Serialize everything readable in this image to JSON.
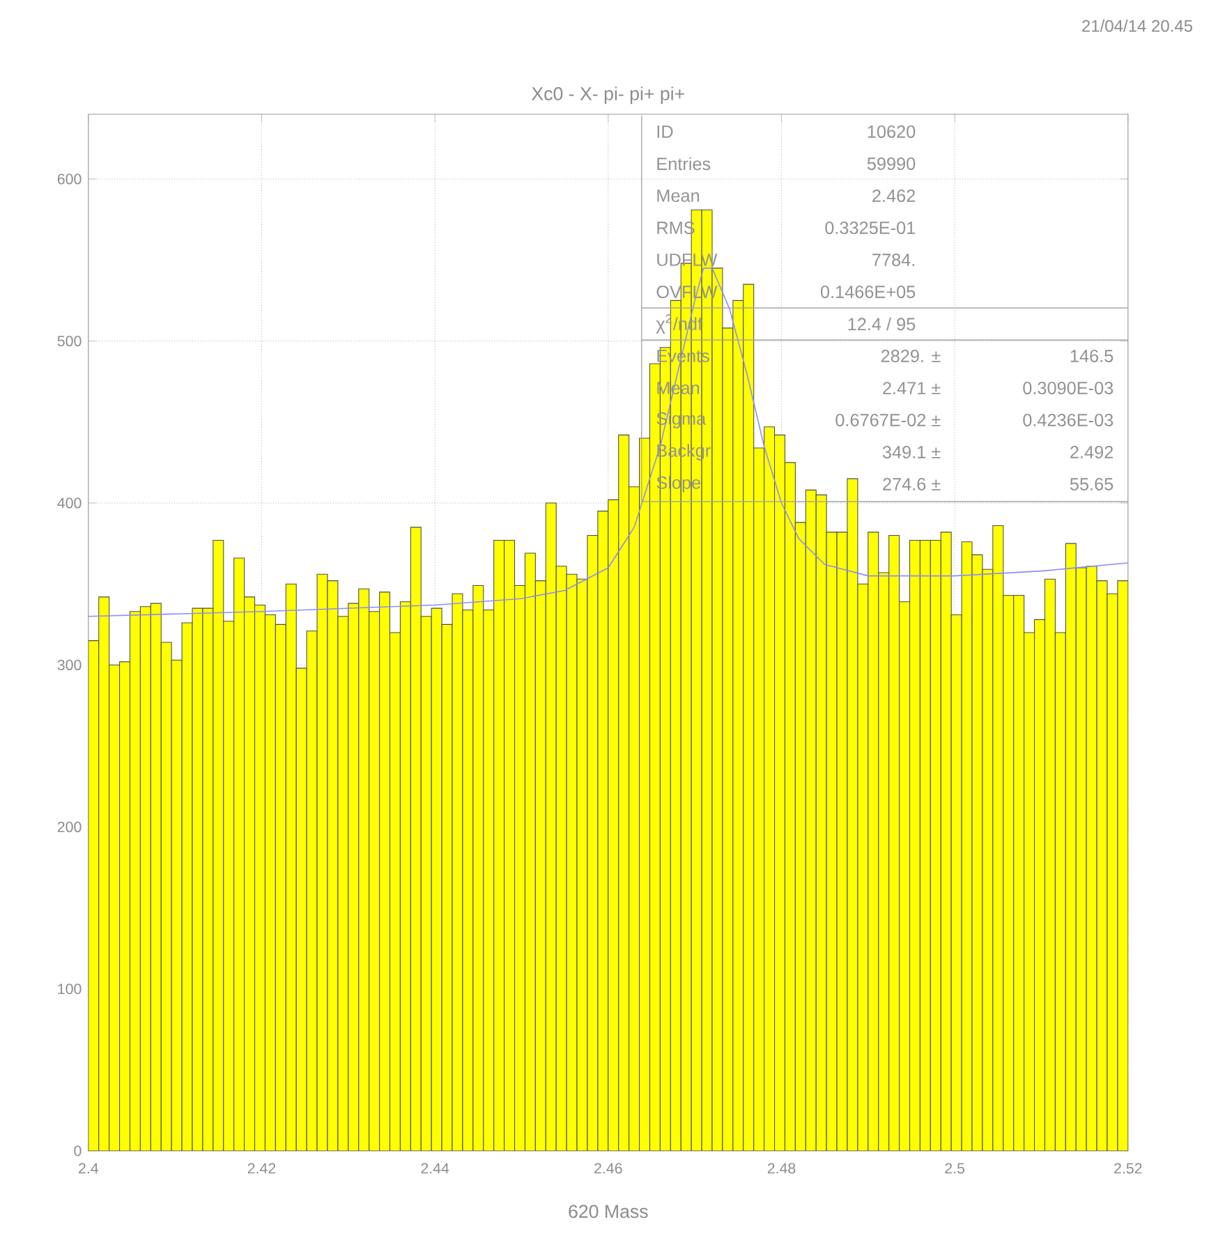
{
  "chart_data": {
    "type": "histogram",
    "title": "Xc0 - X- pi- pi+ pi+",
    "xlabel": "620 Mass",
    "annotations": [
      "21/04/14  20.45",
      "ID",
      "10620",
      "Entries",
      "59990",
      "Mean",
      "2.462",
      "RMS",
      "0.3325E-01",
      "UDFLW",
      "7784.",
      "OVFLW",
      "0.1466E+05",
      "χ$^{2}$/ndf",
      "12.4   /   95",
      "Events",
      "2829. ±",
      "146.5",
      "Mean",
      "2.471 ±",
      "0.3090E-03",
      "Sigma",
      "0.6767E-02 ±",
      "0.4236E-03",
      "Backgr",
      "349.1 ±",
      "2.492",
      "Slope",
      "274.6 ±",
      "55.65"
    ],
    "bins": [
      2.4,
      2.4012,
      2.4024,
      2.4036,
      2.4048,
      2.406,
      2.4072,
      2.4084,
      2.4096,
      2.4108,
      2.412,
      2.4132,
      2.4144,
      2.4156,
      2.4168,
      2.418,
      2.4192,
      2.4204,
      2.4216,
      2.4228,
      2.424,
      2.4252,
      2.4264,
      2.4276,
      2.4288,
      2.43,
      2.4312,
      2.4324,
      2.4336,
      2.4348,
      2.436,
      2.4372,
      2.4384,
      2.4396,
      2.4408,
      2.442,
      2.4432,
      2.4444,
      2.4456,
      2.4468,
      2.448,
      2.4492,
      2.4504,
      2.4516,
      2.4528,
      2.454,
      2.4552,
      2.4564,
      2.4576,
      2.4588,
      2.46,
      2.4612,
      2.4624,
      2.4636,
      2.4648,
      2.466,
      2.4672,
      2.4684,
      2.4696,
      2.4708,
      2.472,
      2.4732,
      2.4744,
      2.4756,
      2.4768,
      2.478,
      2.4792,
      2.4804,
      2.4816,
      2.4828,
      2.484,
      2.4852,
      2.4864,
      2.4876,
      2.4888,
      2.49,
      2.4912,
      2.4924,
      2.4936,
      2.4948,
      2.496,
      2.4972,
      2.4984,
      2.4996,
      2.5008,
      2.502,
      2.5032,
      2.5044,
      2.5056,
      2.5068,
      2.508,
      2.5092,
      2.5104,
      2.5116,
      2.5128,
      2.514,
      2.5152,
      2.5164,
      2.5176,
      2.5188,
      2.52
    ],
    "series": [
      {
        "color": "#ffff00",
        "values": [
          315,
          342,
          300,
          302,
          333,
          336,
          338,
          314,
          303,
          326,
          335,
          335,
          377,
          327,
          366,
          342,
          337,
          331,
          325,
          350,
          298,
          321,
          356,
          352,
          330,
          338,
          347,
          333,
          345,
          320,
          339,
          385,
          330,
          335,
          325,
          344,
          334,
          349,
          334,
          377,
          377,
          349,
          369,
          352,
          400,
          361,
          356,
          353,
          380,
          395,
          402,
          442,
          410,
          440,
          486,
          496,
          525,
          548,
          581,
          581,
          545,
          508,
          525,
          535,
          434,
          447,
          442,
          425,
          388,
          408,
          405,
          382,
          382,
          415,
          350,
          382,
          357,
          380,
          339,
          377,
          377,
          377,
          382,
          331,
          376,
          368,
          359,
          386,
          343,
          343,
          320,
          328,
          353,
          320,
          375,
          360,
          361,
          352,
          344,
          352
        ]
      },
      {
        "type": "line",
        "color": "#8c8cff",
        "x": [
          2.4,
          2.42,
          2.44,
          2.45,
          2.455,
          2.46,
          2.463,
          2.466,
          2.468,
          2.47,
          2.471,
          2.472,
          2.474,
          2.476,
          2.478,
          2.48,
          2.482,
          2.485,
          2.49,
          2.5,
          2.51,
          2.52
        ],
        "values": [
          330,
          333,
          337,
          341,
          346,
          360,
          385,
          435,
          480,
          525,
          545,
          545,
          520,
          480,
          435,
          400,
          378,
          362,
          355,
          355,
          358,
          363
        ]
      }
    ],
    "xlim": [
      2.4,
      2.52
    ],
    "ylim": [
      0,
      640
    ],
    "xticks": [
      2.4,
      2.42,
      2.44,
      2.46,
      2.48,
      2.5,
      2.52
    ],
    "yticks": [
      0,
      100,
      200,
      300,
      400,
      500,
      600
    ],
    "grid": true
  }
}
